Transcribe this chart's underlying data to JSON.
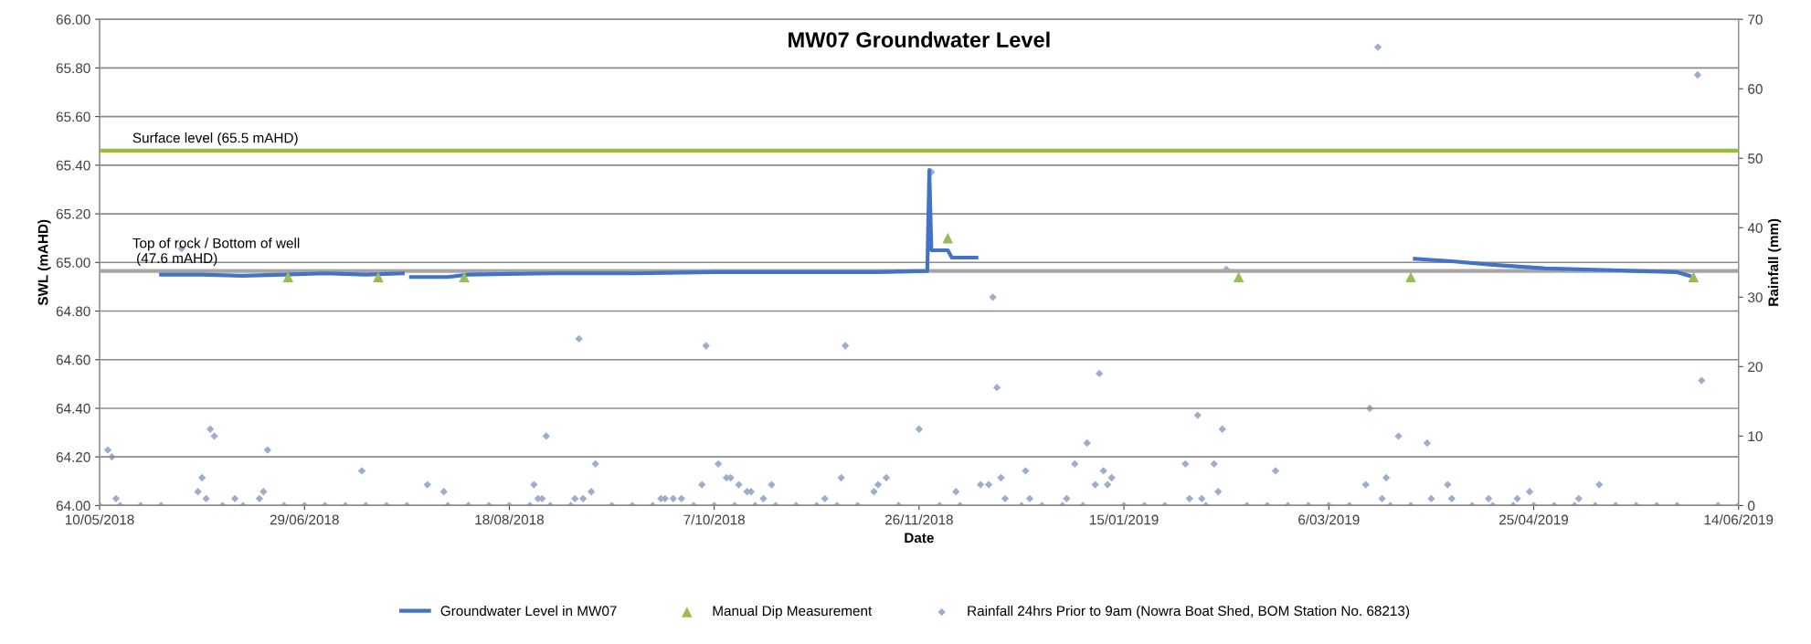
{
  "chart_data": {
    "type": "line",
    "title": "MW07 Groundwater Level",
    "xlabel": "Date",
    "ylabel": "SWL (mAHD)",
    "y2label": "Rainfall (mm)",
    "xlim": [
      "2018-05-10",
      "2019-06-14"
    ],
    "xticks": [
      {
        "value": "2018-05-10",
        "label": "10/05/2018"
      },
      {
        "value": "2018-06-29",
        "label": "29/06/2018"
      },
      {
        "value": "2018-08-18",
        "label": "18/08/2018"
      },
      {
        "value": "2018-10-07",
        "label": "7/10/2018"
      },
      {
        "value": "2018-11-26",
        "label": "26/11/2018"
      },
      {
        "value": "2019-01-15",
        "label": "15/01/2019"
      },
      {
        "value": "2019-03-06",
        "label": "6/03/2019"
      },
      {
        "value": "2019-04-25",
        "label": "25/04/2019"
      },
      {
        "value": "2019-06-14",
        "label": "14/06/2019"
      }
    ],
    "ylim": [
      64,
      66
    ],
    "yticks": [
      {
        "value": 64,
        "label": "64.00"
      },
      {
        "value": 64.2,
        "label": "64.20"
      },
      {
        "value": 64.4,
        "label": "64.40"
      },
      {
        "value": 64.6,
        "label": "64.60"
      },
      {
        "value": 64.8,
        "label": "64.80"
      },
      {
        "value": 65,
        "label": "65.00"
      },
      {
        "value": 65.2,
        "label": "65.20"
      },
      {
        "value": 65.4,
        "label": "65.40"
      },
      {
        "value": 65.6,
        "label": "65.60"
      },
      {
        "value": 65.8,
        "label": "65.80"
      },
      {
        "value": 66,
        "label": "66.00"
      }
    ],
    "y2lim": [
      0,
      70
    ],
    "y2ticks": [
      0,
      10,
      20,
      30,
      40,
      50,
      60,
      70
    ],
    "grid": "y",
    "legend": "bottom",
    "ref_lines": [
      {
        "axis": "y",
        "value": 65.46,
        "label": "Surface level (65.5 mAHD)",
        "color": "#9bbb3b"
      },
      {
        "axis": "y",
        "value": 64.965,
        "label": "Top of rock / Bottom of well\n (47.6 mAHD)",
        "color": "#a6a6a6"
      }
    ],
    "series": [
      {
        "name": "Groundwater Level in MW07",
        "color": "#4472c4",
        "marker": "none",
        "x": [
          "2018-05-25",
          "2018-06-04",
          "2018-06-14",
          "2018-06-24",
          "2018-07-04",
          "2018-07-14",
          "2018-07-23",
          "2018-07-24",
          "2018-07-25",
          "2018-08-03",
          "2018-08-08",
          "2018-08-28",
          "2018-09-17",
          "2018-10-07",
          "2018-10-27",
          "2018-11-16",
          "2018-11-28",
          "2018-11-28T12:00",
          "2018-11-29",
          "2018-12-03",
          "2018-12-04",
          "2018-12-10",
          "2018-12-11",
          "2019-03-27",
          "2019-04-05",
          "2019-04-15",
          "2019-04-28",
          "2019-05-10",
          "2019-05-20",
          "2019-05-30",
          "2019-06-02"
        ],
        "values": [
          64.95,
          64.95,
          64.945,
          64.95,
          64.955,
          64.95,
          64.955,
          null,
          64.94,
          64.94,
          64.95,
          64.955,
          64.955,
          64.96,
          64.96,
          64.96,
          64.965,
          65.38,
          65.05,
          65.05,
          65.02,
          65.02,
          null,
          65.015,
          65.005,
          64.99,
          64.975,
          64.97,
          64.965,
          64.96,
          64.945
        ]
      },
      {
        "name": "Manual Dip Measurement",
        "type": "scatter",
        "color": "#9bbb59",
        "marker": "triangle",
        "x": [
          "2018-06-25",
          "2018-07-17",
          "2018-08-07",
          "2018-12-03",
          "2019-02-12",
          "2019-03-26",
          "2019-06-03"
        ],
        "values": [
          64.94,
          64.94,
          64.94,
          65.1,
          64.94,
          64.94,
          64.94
        ]
      },
      {
        "name": "Rainfall 24hrs Prior to 9am (Nowra Boat Shed, BOM Station No. 68213)",
        "type": "scatter",
        "color": "#9daecb",
        "marker": "diamond",
        "axis": "y2",
        "x": [
          "2018-05-10",
          "2018-05-12",
          "2018-05-13",
          "2018-05-14",
          "2018-05-15",
          "2018-05-20",
          "2018-05-25",
          "2018-05-30",
          "2018-06-03",
          "2018-06-04",
          "2018-06-05",
          "2018-06-06",
          "2018-06-07",
          "2018-06-09",
          "2018-06-12",
          "2018-06-14",
          "2018-06-18",
          "2018-06-19",
          "2018-06-20",
          "2018-06-24",
          "2018-06-29",
          "2018-07-04",
          "2018-07-09",
          "2018-07-13",
          "2018-07-14",
          "2018-07-19",
          "2018-07-24",
          "2018-07-29",
          "2018-08-02",
          "2018-08-03",
          "2018-08-08",
          "2018-08-13",
          "2018-08-18",
          "2018-08-23",
          "2018-08-24",
          "2018-08-25",
          "2018-08-26",
          "2018-08-27",
          "2018-08-28",
          "2018-09-02",
          "2018-09-03",
          "2018-09-04",
          "2018-09-05",
          "2018-09-07",
          "2018-09-08",
          "2018-09-12",
          "2018-09-17",
          "2018-09-22",
          "2018-09-24",
          "2018-09-25",
          "2018-09-27",
          "2018-09-29",
          "2018-10-02",
          "2018-10-04",
          "2018-10-05",
          "2018-10-07",
          "2018-10-08",
          "2018-10-10",
          "2018-10-11",
          "2018-10-12",
          "2018-10-13",
          "2018-10-15",
          "2018-10-16",
          "2018-10-17",
          "2018-10-19",
          "2018-10-21",
          "2018-10-22",
          "2018-10-27",
          "2018-11-01",
          "2018-11-03",
          "2018-11-06",
          "2018-11-07",
          "2018-11-08",
          "2018-11-11",
          "2018-11-15",
          "2018-11-16",
          "2018-11-18",
          "2018-11-21",
          "2018-11-26",
          "2018-11-29",
          "2018-12-01",
          "2018-12-05",
          "2018-12-06",
          "2018-12-11",
          "2018-12-13",
          "2018-12-14",
          "2018-12-15",
          "2018-12-16",
          "2018-12-17",
          "2018-12-21",
          "2018-12-22",
          "2018-12-23",
          "2018-12-26",
          "2018-12-31",
          "2019-01-01",
          "2019-01-03",
          "2019-01-05",
          "2019-01-06",
          "2019-01-08",
          "2019-01-09",
          "2019-01-10",
          "2019-01-11",
          "2019-01-12",
          "2019-01-15",
          "2019-01-20",
          "2019-01-25",
          "2019-01-30",
          "2019-01-31",
          "2019-02-02",
          "2019-02-03",
          "2019-02-04",
          "2019-02-06",
          "2019-02-07",
          "2019-02-08",
          "2019-02-09",
          "2019-02-14",
          "2019-02-19",
          "2019-02-21",
          "2019-02-24",
          "2019-03-01",
          "2019-03-06",
          "2019-03-11",
          "2019-03-15",
          "2019-03-16",
          "2019-03-18",
          "2019-03-19",
          "2019-03-20",
          "2019-03-21",
          "2019-03-23",
          "2019-03-26",
          "2019-03-30",
          "2019-03-31",
          "2019-04-04",
          "2019-04-05",
          "2019-04-10",
          "2019-04-14",
          "2019-04-15",
          "2019-04-20",
          "2019-04-21",
          "2019-04-24",
          "2019-04-25",
          "2019-04-30",
          "2019-05-05",
          "2019-05-06",
          "2019-05-10",
          "2019-05-11",
          "2019-05-15",
          "2019-05-20",
          "2019-05-25",
          "2019-05-30",
          "2019-06-04",
          "2019-06-05",
          "2019-06-09",
          "2019-06-14"
        ],
        "values": [
          0,
          8,
          7,
          1,
          0,
          0,
          0,
          37,
          2,
          4,
          1,
          11,
          10,
          0,
          1,
          0,
          1,
          2,
          8,
          0,
          0,
          0,
          0,
          5,
          0,
          0,
          0,
          3,
          2,
          0,
          0,
          0,
          0,
          0,
          3,
          1,
          1,
          10,
          0,
          0,
          1,
          24,
          1,
          2,
          6,
          0,
          0,
          0,
          1,
          1,
          1,
          1,
          0,
          3,
          23,
          0,
          6,
          4,
          4,
          0,
          3,
          2,
          2,
          0,
          1,
          3,
          0,
          0,
          0,
          1,
          0,
          4,
          23,
          0,
          2,
          3,
          4,
          0,
          11,
          48,
          0,
          2,
          0,
          3,
          3,
          30,
          17,
          4,
          1,
          0,
          5,
          1,
          0,
          0,
          1,
          6,
          0,
          9,
          3,
          19,
          5,
          3,
          4,
          0,
          0,
          0,
          6,
          1,
          13,
          1,
          0,
          6,
          2,
          11,
          34,
          0,
          0,
          5,
          0,
          0,
          0,
          0,
          3,
          14,
          66,
          1,
          4,
          0,
          10,
          0,
          9,
          1,
          3,
          1,
          0,
          1,
          0,
          0,
          1,
          2,
          0,
          0,
          0,
          1,
          0,
          3,
          0,
          0,
          0,
          0,
          62,
          18,
          0,
          0
        ]
      }
    ]
  }
}
